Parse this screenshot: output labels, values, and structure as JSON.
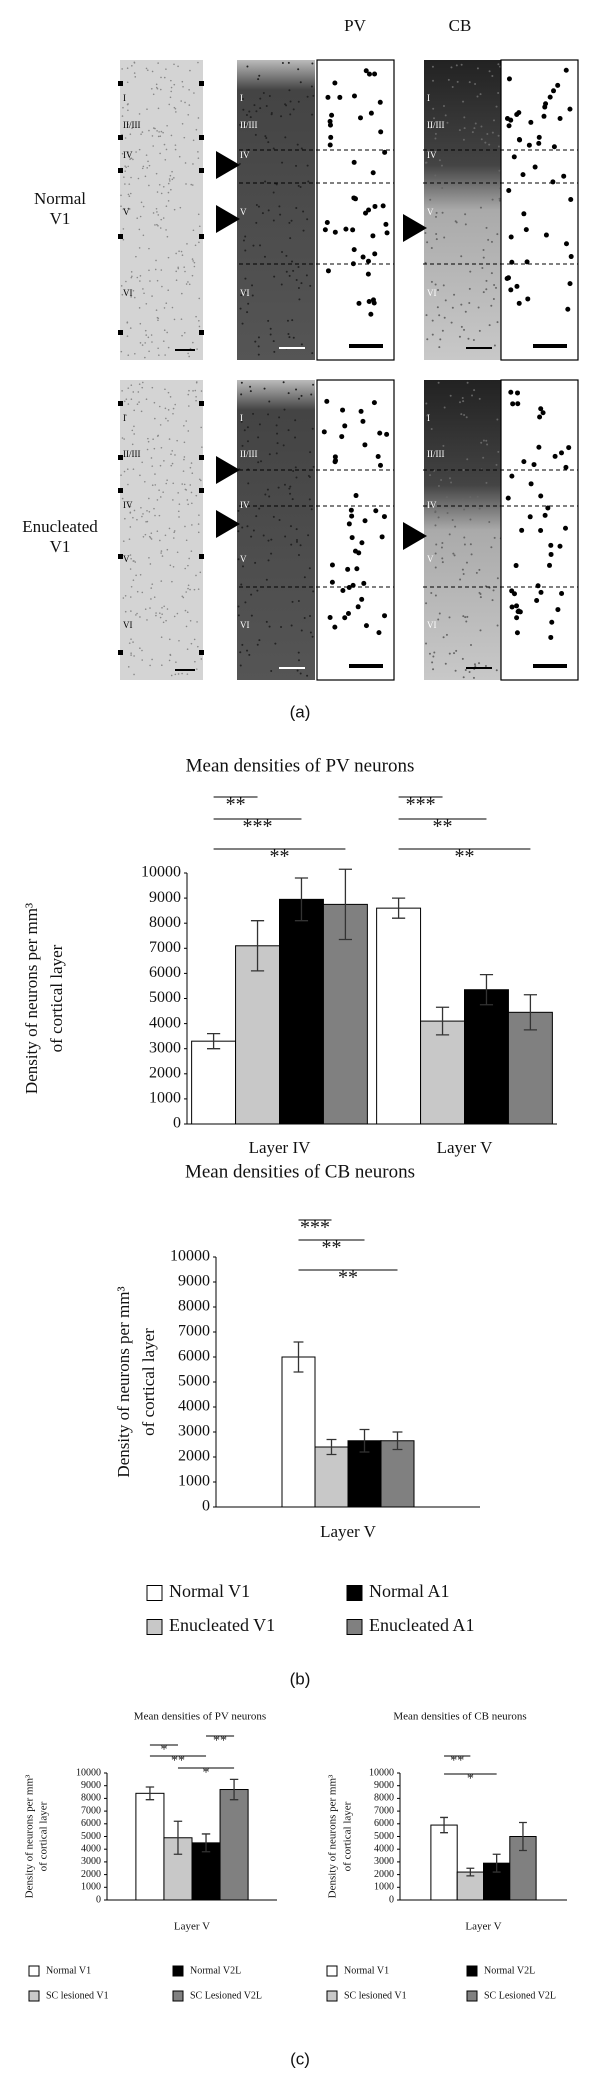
{
  "panel_a": {
    "columns": [
      "PV",
      "CB"
    ],
    "rows": [
      [
        "Normal",
        "V1"
      ],
      [
        "Enucleated",
        "V1"
      ]
    ],
    "layers": [
      "I",
      "II/III",
      "IV",
      "V",
      "VI"
    ]
  },
  "panel_labels": [
    "(a)",
    "(b)",
    "(c)"
  ],
  "chart_data": [
    {
      "type": "bar",
      "title": "Mean densities of PV neurons",
      "y_label": [
        "Density of neurons per mm³",
        "of cortical layer"
      ],
      "categories": [
        "Layer IV",
        "Layer V"
      ],
      "series": [
        {
          "name": "Normal V1",
          "color": "#ffffff",
          "values": [
            3300,
            8600
          ],
          "errors": [
            300,
            400
          ]
        },
        {
          "name": "Enucleated V1",
          "color": "#c8c8c8",
          "values": [
            7100,
            4100
          ],
          "errors": [
            1000,
            550
          ]
        },
        {
          "name": "Normal A1",
          "color": "#000000",
          "values": [
            8950,
            5350
          ],
          "errors": [
            850,
            600
          ]
        },
        {
          "name": "Enucleated A1",
          "color": "#808080",
          "values": [
            8750,
            4450
          ],
          "errors": [
            1400,
            700
          ]
        }
      ],
      "annotations": [
        "**",
        "***",
        "**",
        "***",
        "**",
        "**"
      ],
      "ylim": [
        0,
        10000
      ],
      "yticks": [
        0,
        1000,
        2000,
        3000,
        4000,
        5000,
        6000,
        7000,
        8000,
        9000,
        10000
      ],
      "legend": true
    },
    {
      "type": "bar",
      "title": "Mean densities of CB neurons",
      "y_label": [
        "Density of neurons per mm³",
        "of cortical layer"
      ],
      "categories": [
        "Layer V"
      ],
      "series": [
        {
          "color": "#ffffff",
          "values": [
            6000
          ],
          "errors": [
            600
          ]
        },
        {
          "color": "#c8c8c8",
          "values": [
            2400
          ],
          "errors": [
            300
          ]
        },
        {
          "color": "#000000",
          "values": [
            2650
          ],
          "errors": [
            450
          ]
        },
        {
          "color": "#808080",
          "values": [
            2650
          ],
          "errors": [
            350
          ]
        }
      ],
      "annotations": [
        "***",
        "**",
        "**"
      ],
      "ylim": [
        0,
        10000
      ],
      "yticks": [
        0,
        1000,
        2000,
        3000,
        4000,
        5000,
        6000,
        7000,
        8000,
        9000,
        10000
      ],
      "legend": false
    },
    {
      "type": "bar",
      "title": "Mean densities of PV neurons",
      "y_label": [
        "Density of neurons per mm³",
        "of cortical layer"
      ],
      "categories": [
        "Layer V"
      ],
      "series": [
        {
          "name": "Normal V1",
          "color": "#ffffff",
          "values": [
            8400
          ],
          "errors": [
            500
          ]
        },
        {
          "name": "SC lesioned V1",
          "color": "#c8c8c8",
          "values": [
            4900
          ],
          "errors": [
            1300
          ]
        },
        {
          "name": "Normal V2L",
          "color": "#000000",
          "values": [
            4500
          ],
          "errors": [
            700
          ]
        },
        {
          "name": "SC Lesioned V2L",
          "color": "#808080",
          "values": [
            8700
          ],
          "errors": [
            800
          ]
        }
      ],
      "annotations": [
        "*",
        "**",
        "**",
        "*"
      ],
      "ylim": [
        0,
        10000
      ],
      "yticks": [
        0,
        1000,
        2000,
        3000,
        4000,
        5000,
        6000,
        7000,
        8000,
        9000,
        10000
      ],
      "legend": true
    },
    {
      "type": "bar",
      "title": "Mean densities of CB neurons",
      "y_label": [
        "Density of neurons per mm³",
        "of cortical layer"
      ],
      "categories": [
        "Layer V"
      ],
      "series": [
        {
          "name": "Normal V1",
          "color": "#ffffff",
          "values": [
            5900
          ],
          "errors": [
            600
          ]
        },
        {
          "name": "SC lesioned V1",
          "color": "#c8c8c8",
          "values": [
            2200
          ],
          "errors": [
            300
          ]
        },
        {
          "name": "Normal V2L",
          "color": "#000000",
          "values": [
            2900
          ],
          "errors": [
            700
          ]
        },
        {
          "name": "SC Lesioned V2L",
          "color": "#808080",
          "values": [
            5000
          ],
          "errors": [
            1100
          ]
        }
      ],
      "annotations": [
        "**",
        "*"
      ],
      "ylim": [
        0,
        10000
      ],
      "yticks": [
        0,
        1000,
        2000,
        3000,
        4000,
        5000,
        6000,
        7000,
        8000,
        9000,
        10000
      ],
      "legend": true
    }
  ]
}
